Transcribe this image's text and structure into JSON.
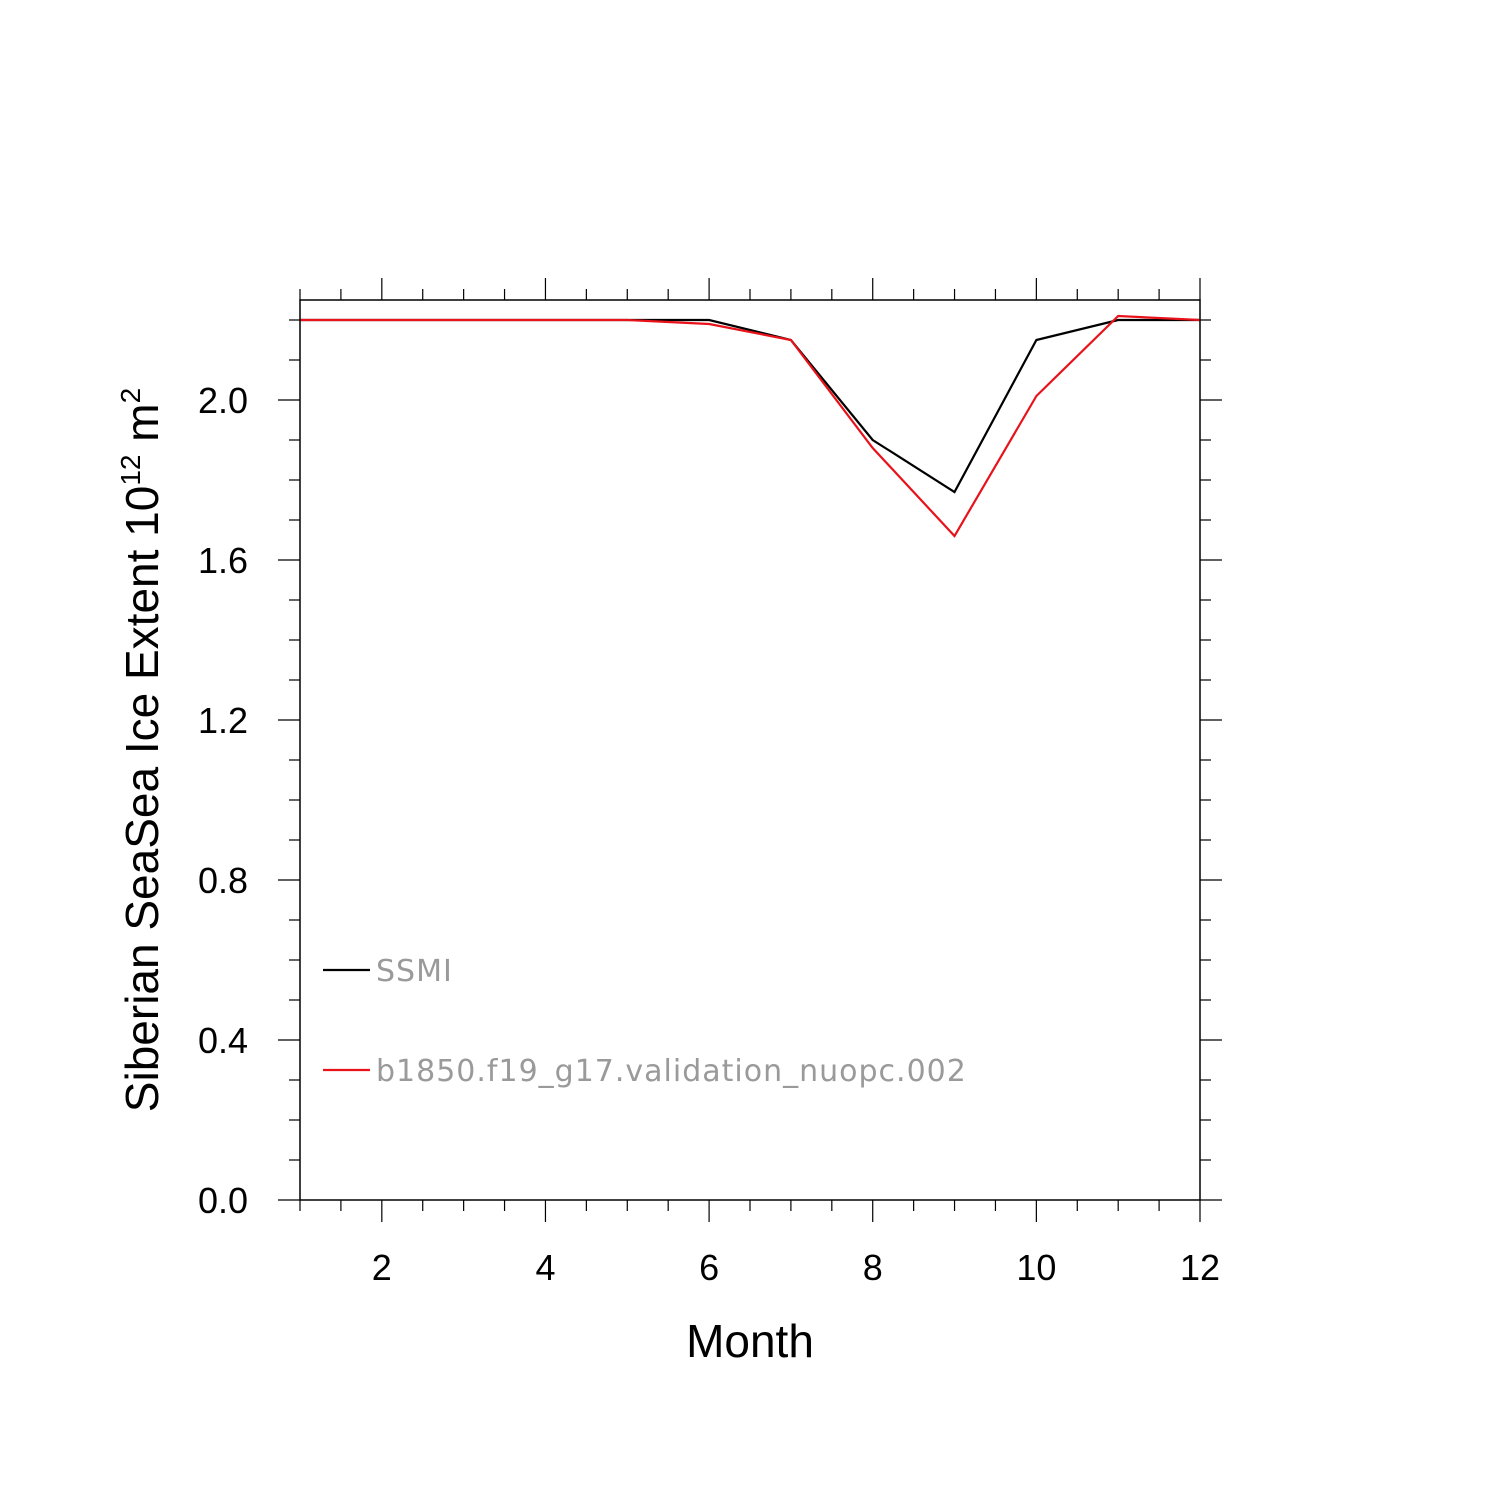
{
  "chart_data": {
    "type": "line",
    "xlabel": "Month",
    "ylabel": {
      "text": "Siberian SeaSea Ice Extent 10",
      "exponent": "12",
      "unit": " m",
      "unit_exponent": "2"
    },
    "xlim": [
      1,
      12
    ],
    "ylim": [
      0,
      2.25
    ],
    "x_ticks_major": [
      2,
      4,
      6,
      8,
      10,
      12
    ],
    "x_tick_labels": [
      "2",
      "4",
      "6",
      "8",
      "10",
      "12"
    ],
    "y_ticks_major": [
      0.0,
      0.4,
      0.8,
      1.2,
      1.6,
      2.0
    ],
    "y_tick_labels": [
      "0.0",
      "0.4",
      "0.8",
      "1.2",
      "1.6",
      "2.0"
    ],
    "x": [
      1,
      2,
      3,
      4,
      5,
      6,
      7,
      8,
      9,
      10,
      11,
      12
    ],
    "series": [
      {
        "name": "SSMI",
        "color": "#000000",
        "values": [
          2.2,
          2.2,
          2.2,
          2.2,
          2.2,
          2.2,
          2.15,
          1.9,
          1.77,
          2.15,
          2.2,
          2.2
        ]
      },
      {
        "name": "b1850.f19_g17.validation_nuopc.002",
        "color": "#e8121b",
        "values": [
          2.2,
          2.2,
          2.2,
          2.2,
          2.2,
          2.19,
          2.15,
          1.88,
          1.66,
          2.01,
          2.21,
          2.2
        ]
      }
    ],
    "legend_position": "lower-left",
    "grid": false
  }
}
